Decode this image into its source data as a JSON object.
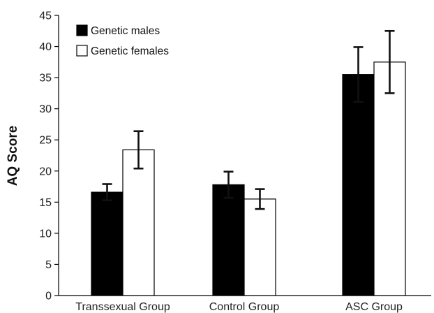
{
  "chart_data": {
    "type": "bar",
    "title": "",
    "xlabel": "",
    "ylabel": "AQ Score",
    "ylim": [
      0,
      45
    ],
    "yticks": [
      0,
      5,
      10,
      15,
      20,
      25,
      30,
      35,
      40,
      45
    ],
    "categories": [
      "Transsexual Group",
      "Control Group",
      "ASC Group"
    ],
    "legend_position": "top-left",
    "grid": false,
    "series": [
      {
        "name": "Genetic males",
        "color": "#000000",
        "values": [
          16.6,
          17.8,
          35.5
        ],
        "error": [
          1.3,
          2.1,
          4.4
        ]
      },
      {
        "name": "Genetic females",
        "color": "#ffffff",
        "values": [
          23.4,
          15.5,
          37.5
        ],
        "error": [
          3.0,
          1.6,
          5.0
        ]
      }
    ]
  }
}
